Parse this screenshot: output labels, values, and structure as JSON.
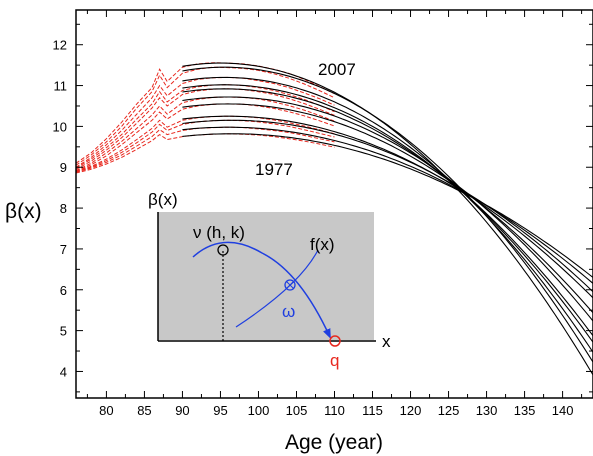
{
  "chart_data": {
    "type": "line",
    "xlabel": "Age (year)",
    "ylabel": "β(x)",
    "xlim": [
      76,
      144
    ],
    "ylim": [
      3.35,
      12.85
    ],
    "x_ticks": [
      80,
      85,
      90,
      95,
      100,
      105,
      110,
      115,
      120,
      125,
      130,
      135,
      140
    ],
    "y_ticks": [
      4,
      5,
      6,
      7,
      8,
      9,
      10,
      11,
      12
    ],
    "annotations": [
      "2007",
      "1977"
    ],
    "fitted_series": [
      {
        "peak_age": 95.0,
        "peak": 11.55,
        "curvature": 0.00318
      },
      {
        "peak_age": 95.5,
        "peak": 11.45,
        "curvature": 0.00307
      },
      {
        "peak_age": 95.5,
        "peak": 11.2,
        "curvature": 0.00286
      },
      {
        "peak_age": 95.5,
        "peak": 11.02,
        "curvature": 0.00268
      },
      {
        "peak_age": 95.5,
        "peak": 10.92,
        "curvature": 0.00257
      },
      {
        "peak_age": 96.0,
        "peak": 10.72,
        "curvature": 0.00238
      },
      {
        "peak_age": 96.0,
        "peak": 10.55,
        "curvature": 0.00222
      },
      {
        "peak_age": 96.0,
        "peak": 10.25,
        "curvature": 0.00193
      },
      {
        "peak_age": 96.5,
        "peak": 10.15,
        "curvature": 0.00186
      },
      {
        "peak_age": 96.0,
        "peak": 9.98,
        "curvature": 0.00166
      },
      {
        "peak_age": 96.5,
        "peak": 9.82,
        "curvature": 0.00156
      }
    ],
    "observed_series": [
      {
        "age": [
          76,
          78,
          80,
          82,
          84,
          86,
          87,
          88,
          90,
          92,
          94,
          96,
          98,
          100,
          102,
          104,
          106,
          108,
          110
        ],
        "beta": [
          9.1,
          9.35,
          9.7,
          10.1,
          10.55,
          10.95,
          11.4,
          11.1,
          11.45,
          11.53,
          11.56,
          11.55,
          11.53,
          11.48,
          11.4,
          11.3,
          11.15,
          10.98,
          10.8
        ]
      },
      {
        "age": [
          76,
          78,
          80,
          82,
          84,
          86,
          87,
          88,
          90,
          92,
          94,
          96,
          98,
          100,
          102,
          104,
          106,
          108,
          110
        ],
        "beta": [
          9.05,
          9.3,
          9.62,
          10.0,
          10.45,
          10.85,
          11.25,
          10.95,
          11.3,
          11.4,
          11.45,
          11.44,
          11.42,
          11.37,
          11.29,
          11.18,
          11.04,
          10.88,
          10.7
        ]
      },
      {
        "age": [
          76,
          78,
          80,
          82,
          84,
          86,
          87,
          88,
          90,
          92,
          94,
          96,
          98,
          100,
          102,
          104,
          106,
          108,
          110
        ],
        "beta": [
          9.0,
          9.24,
          9.55,
          9.9,
          10.3,
          10.7,
          11.0,
          10.75,
          11.05,
          11.15,
          11.19,
          11.2,
          11.18,
          11.12,
          11.05,
          10.95,
          10.82,
          10.68,
          10.52
        ]
      },
      {
        "age": [
          76,
          78,
          80,
          82,
          84,
          86,
          87,
          88,
          90,
          92,
          94,
          96,
          98,
          100,
          102,
          104,
          106,
          108,
          110
        ],
        "beta": [
          8.98,
          9.2,
          9.48,
          9.8,
          10.18,
          10.55,
          10.85,
          10.6,
          10.88,
          10.97,
          11.01,
          11.02,
          11.0,
          10.95,
          10.88,
          10.78,
          10.66,
          10.52,
          10.36
        ]
      },
      {
        "age": [
          76,
          78,
          80,
          82,
          84,
          86,
          87,
          88,
          90,
          92,
          94,
          96,
          98,
          100,
          102,
          104,
          106,
          108,
          110
        ],
        "beta": [
          8.95,
          9.15,
          9.42,
          9.72,
          10.08,
          10.45,
          10.7,
          10.5,
          10.78,
          10.87,
          10.91,
          10.92,
          10.9,
          10.85,
          10.78,
          10.68,
          10.56,
          10.42,
          10.27
        ]
      },
      {
        "age": [
          76,
          78,
          80,
          82,
          84,
          86,
          87,
          88,
          90,
          92,
          94,
          96,
          98,
          100,
          102,
          104,
          106,
          108,
          110
        ],
        "beta": [
          8.92,
          9.1,
          9.35,
          9.63,
          9.95,
          10.28,
          10.5,
          10.3,
          10.58,
          10.66,
          10.71,
          10.72,
          10.71,
          10.67,
          10.6,
          10.51,
          10.4,
          10.27,
          10.13
        ]
      },
      {
        "age": [
          76,
          78,
          80,
          82,
          84,
          86,
          87,
          88,
          90,
          92,
          94,
          96,
          98,
          100,
          102,
          104,
          106,
          108,
          110
        ],
        "beta": [
          8.9,
          9.06,
          9.28,
          9.55,
          9.85,
          10.15,
          10.35,
          10.18,
          10.42,
          10.5,
          10.54,
          10.55,
          10.54,
          10.5,
          10.44,
          10.36,
          10.26,
          10.14,
          10.01
        ]
      },
      {
        "age": [
          76,
          78,
          80,
          82,
          84,
          86,
          87,
          88,
          90,
          92,
          94,
          96,
          98,
          100,
          102,
          104,
          106,
          108,
          110
        ],
        "beta": [
          8.9,
          9.02,
          9.2,
          9.42,
          9.68,
          9.95,
          10.15,
          9.98,
          10.15,
          10.21,
          10.24,
          10.25,
          10.24,
          10.21,
          10.16,
          10.09,
          10.01,
          9.92,
          9.82
        ]
      },
      {
        "age": [
          76,
          78,
          80,
          82,
          84,
          86,
          87,
          88,
          90,
          92,
          94,
          96,
          98,
          100,
          102,
          104,
          106,
          108,
          110
        ],
        "beta": [
          8.88,
          9.0,
          9.16,
          9.36,
          9.6,
          9.86,
          10.05,
          9.9,
          10.05,
          10.11,
          10.14,
          10.15,
          10.14,
          10.11,
          10.06,
          10.0,
          9.92,
          9.83,
          9.74
        ]
      },
      {
        "age": [
          76,
          78,
          80,
          82,
          84,
          86,
          87,
          88,
          90,
          92,
          94,
          96,
          98,
          100,
          102,
          104,
          106,
          108,
          110
        ],
        "beta": [
          8.88,
          8.98,
          9.12,
          9.3,
          9.52,
          9.75,
          9.92,
          9.8,
          9.9,
          9.95,
          9.97,
          9.98,
          9.97,
          9.94,
          9.9,
          9.85,
          9.78,
          9.7,
          9.62
        ]
      },
      {
        "age": [
          76,
          78,
          80,
          82,
          84,
          86,
          87,
          88,
          90,
          92,
          94,
          96,
          98,
          100,
          102,
          104,
          106,
          108,
          110
        ],
        "beta": [
          8.86,
          8.95,
          9.08,
          9.24,
          9.44,
          9.65,
          9.8,
          9.68,
          9.75,
          9.79,
          9.81,
          9.82,
          9.81,
          9.79,
          9.75,
          9.7,
          9.64,
          9.57,
          9.49
        ]
      }
    ],
    "colors": {
      "fitted": "#000000",
      "observed": "#e8281e",
      "inset_bg": "#c8c8c8",
      "inset_curve": "#1f3fe0",
      "q_color": "#e8281e"
    },
    "inset": {
      "y_label": "β(x)",
      "x_label": "x",
      "vertex_label": "ν (h, k)",
      "curve_label": "f(x)",
      "omega_label": "ω",
      "q_label": "q"
    }
  }
}
